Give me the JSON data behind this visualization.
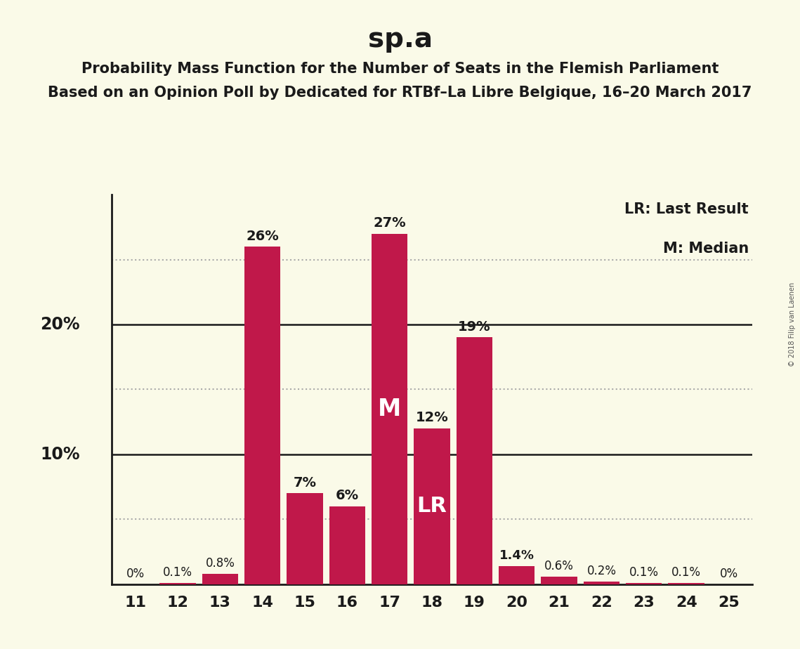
{
  "title": "sp.a",
  "subtitle1": "Probability Mass Function for the Number of Seats in the Flemish Parliament",
  "subtitle2": "Based on an Opinion Poll by Dedicated for RTBf–La Libre Belgique, 16–20 March 2017",
  "categories": [
    11,
    12,
    13,
    14,
    15,
    16,
    17,
    18,
    19,
    20,
    21,
    22,
    23,
    24,
    25
  ],
  "values": [
    0.0,
    0.1,
    0.8,
    26.0,
    7.0,
    6.0,
    27.0,
    12.0,
    19.0,
    1.4,
    0.6,
    0.2,
    0.1,
    0.1,
    0.0
  ],
  "labels": [
    "0%",
    "0.1%",
    "0.8%",
    "26%",
    "7%",
    "6%",
    "27%",
    "12%",
    "19%",
    "1.4%",
    "0.6%",
    "0.2%",
    "0.1%",
    "0.1%",
    "0%"
  ],
  "bar_color": "#C0184A",
  "background_color": "#FAFAE8",
  "text_color": "#1A1A1A",
  "grid_dotted_color": "#aaaaaa",
  "median_bar": 17,
  "lr_bar": 18,
  "legend_lr": "LR: Last Result",
  "legend_m": "M: Median",
  "watermark": "© 2018 Filip van Laenen",
  "ylim": [
    0,
    30
  ],
  "solid_lines": [
    10,
    20
  ],
  "dotted_lines": [
    5,
    15,
    25
  ]
}
